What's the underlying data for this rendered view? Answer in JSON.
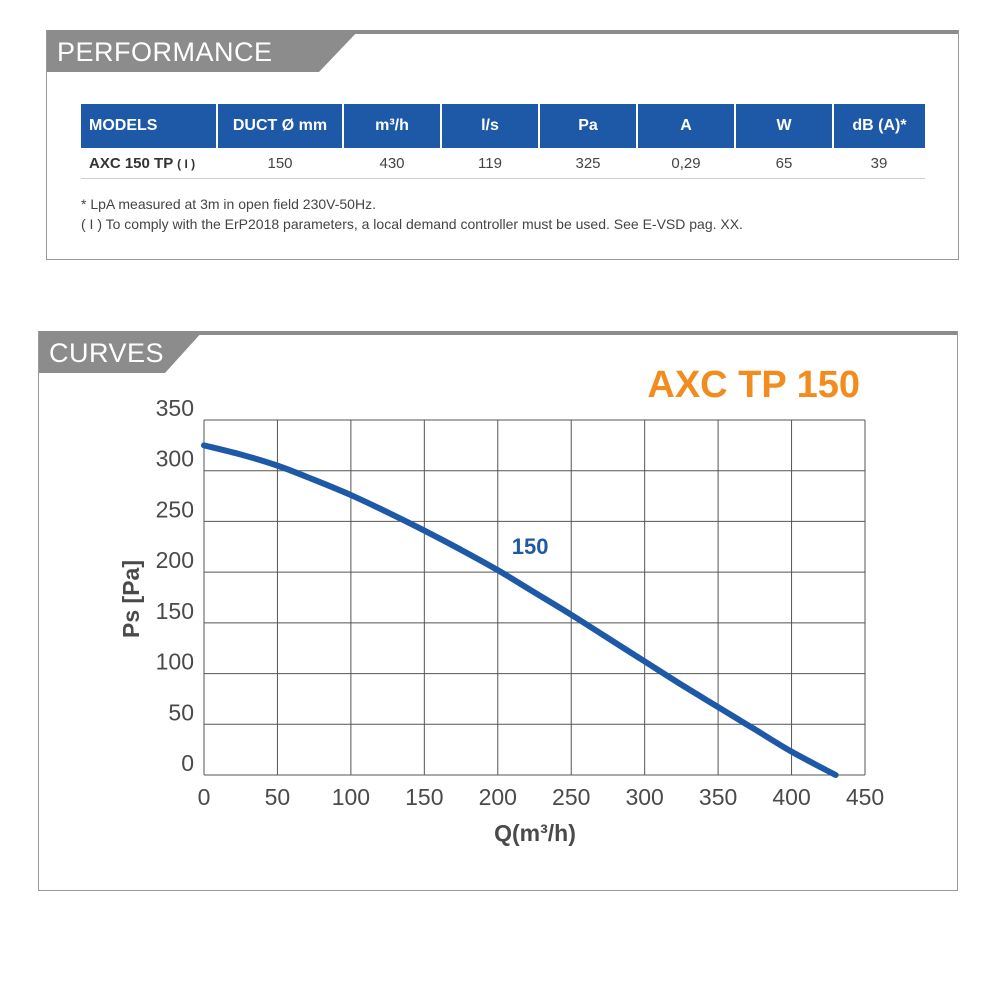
{
  "performance": {
    "tab_label": "PERFORMANCE",
    "headers": [
      "MODELS",
      "DUCT Ø mm",
      "m³/h",
      "l/s",
      "Pa",
      "A",
      "W",
      "dB (A)*"
    ],
    "row": {
      "model": "AXC 150 TP",
      "model_note": "( I )",
      "values": [
        "150",
        "430",
        "119",
        "325",
        "0,29",
        "65",
        "39"
      ]
    },
    "footnote_1": "* LpA measured at 3m in open field 230V-50Hz.",
    "footnote_2": "( I ) To comply with the ErP2018 parameters, a local demand controller must be used. See E-VSD pag. XX."
  },
  "curves": {
    "tab_label": "CURVES"
  },
  "colors": {
    "header_blue": "#1e59a8",
    "curve_blue": "#1e59a8",
    "title_orange": "#f28c1e",
    "tab_gray": "#8c8c8c"
  },
  "chart_data": {
    "type": "line",
    "title": "AXC TP 150",
    "xlabel": "Q(m³/h)",
    "ylabel": "Ps [Pa]",
    "xlim": [
      0,
      450
    ],
    "ylim": [
      0,
      350
    ],
    "x_ticks": [
      "0",
      "50",
      "100",
      "150",
      "200",
      "250",
      "300",
      "350",
      "400",
      "450"
    ],
    "y_ticks": [
      "0",
      "50",
      "100",
      "150",
      "200",
      "250",
      "300",
      "350"
    ],
    "grid": true,
    "series": [
      {
        "name": "150",
        "x": [
          0,
          25,
          50,
          75,
          100,
          125,
          150,
          175,
          200,
          225,
          250,
          275,
          300,
          325,
          350,
          375,
          400,
          430
        ],
        "y": [
          325,
          316,
          305,
          291,
          276,
          259,
          241,
          222,
          202,
          180,
          158,
          135,
          112,
          89,
          67,
          45,
          23,
          0
        ]
      }
    ]
  }
}
